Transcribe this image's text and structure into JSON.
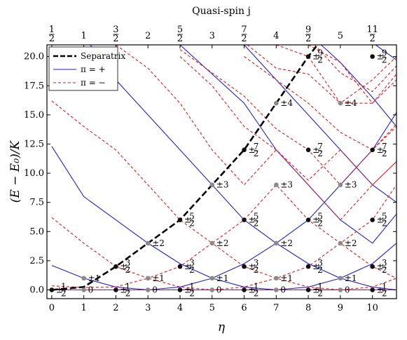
{
  "chart_data": {
    "type": "line",
    "xlabel": "η",
    "ylabel": "(E − E₀)/K",
    "top_xlabel": "Quasi-spin j",
    "xlim": [
      -0.15,
      10.75
    ],
    "ylim": [
      -0.75,
      21.0
    ],
    "x_ticks": [
      {
        "v": 0,
        "label": "0"
      },
      {
        "v": 1,
        "label": "1"
      },
      {
        "v": 2,
        "label": "2"
      },
      {
        "v": 3,
        "label": "3"
      },
      {
        "v": 4,
        "label": "4"
      },
      {
        "v": 5,
        "label": "5"
      },
      {
        "v": 6,
        "label": "6"
      },
      {
        "v": 7,
        "label": "7"
      },
      {
        "v": 8,
        "label": "8"
      },
      {
        "v": 9,
        "label": "9"
      },
      {
        "v": 10,
        "label": "10"
      }
    ],
    "y_ticks": [
      {
        "v": 0,
        "label": "0.0"
      },
      {
        "v": 2.5,
        "label": "2.5"
      },
      {
        "v": 5,
        "label": "5.0"
      },
      {
        "v": 7.5,
        "label": "7.5"
      },
      {
        "v": 10,
        "label": "10.0"
      },
      {
        "v": 12.5,
        "label": "12.5"
      },
      {
        "v": 15,
        "label": "15.0"
      },
      {
        "v": 17.5,
        "label": "17.5"
      },
      {
        "v": 20,
        "label": "20.0"
      }
    ],
    "top_ticks": [
      {
        "v": 0,
        "num": "1",
        "den": "2",
        "label": ""
      },
      {
        "v": 1,
        "num": "",
        "den": "",
        "label": "1"
      },
      {
        "v": 2,
        "num": "3",
        "den": "2",
        "label": ""
      },
      {
        "v": 3,
        "num": "",
        "den": "",
        "label": "2"
      },
      {
        "v": 4,
        "num": "5",
        "den": "2",
        "label": ""
      },
      {
        "v": 5,
        "num": "",
        "den": "",
        "label": "3"
      },
      {
        "v": 6,
        "num": "7",
        "den": "2",
        "label": ""
      },
      {
        "v": 7,
        "num": "",
        "den": "",
        "label": "4"
      },
      {
        "v": 8,
        "num": "9",
        "den": "2",
        "label": ""
      },
      {
        "v": 9,
        "num": "",
        "den": "",
        "label": "5"
      },
      {
        "v": 10,
        "num": "11",
        "den": "2",
        "label": ""
      }
    ],
    "legend": {
      "placement": "top-left",
      "entries": [
        {
          "label": "Separatrix",
          "style": "dashed-thick",
          "color": "#000000"
        },
        {
          "label": "π = +",
          "style": "solid",
          "color": "#1f1fd6"
        },
        {
          "label": "π = −",
          "style": "dashed",
          "color": "#e8161b"
        }
      ]
    },
    "series": [
      {
        "style": "separatrix",
        "color": "#000000",
        "dash": true,
        "x": [
          0,
          1,
          2,
          3,
          4,
          5,
          6,
          7,
          8,
          8.4
        ],
        "y": [
          0,
          0.25,
          2,
          4,
          6,
          9,
          12,
          16,
          20,
          21.4
        ]
      },
      {
        "style": "plus",
        "color": "#1f1fd6",
        "x": [
          0,
          1,
          2,
          3,
          4,
          5,
          6,
          7,
          8,
          9,
          10,
          10.75
        ],
        "y": [
          0,
          0,
          0,
          0,
          0,
          0,
          0,
          0,
          0,
          0,
          0,
          0
        ]
      },
      {
        "style": "plus",
        "color": "#1f1fd6",
        "x": [
          0,
          1,
          2,
          3,
          4,
          5,
          6,
          7,
          8,
          9,
          10,
          10.75
        ],
        "y": [
          2.1,
          1,
          0.25,
          0,
          0.25,
          1,
          0.25,
          0,
          0.25,
          1,
          0.25,
          0
        ]
      },
      {
        "style": "plus",
        "color": "#1f1fd6",
        "x": [
          0,
          1,
          2,
          3,
          4,
          5,
          6,
          7,
          8,
          9,
          10,
          10.75
        ],
        "y": [
          12.3,
          8,
          6,
          4,
          2.25,
          1,
          2.25,
          4,
          2.25,
          1,
          2.25,
          4
        ]
      },
      {
        "style": "plus",
        "color": "#1f1fd6",
        "x": [
          1.2,
          2,
          3,
          4,
          5,
          6,
          7,
          8,
          9,
          10,
          10.75
        ],
        "y": [
          21,
          18,
          15,
          12,
          9,
          6,
          4,
          6,
          9,
          12,
          15.2
        ]
      },
      {
        "style": "plus",
        "color": "#1f1fd6",
        "x": [
          4,
          5,
          6,
          7,
          8,
          9,
          10,
          10.75
        ],
        "y": [
          21,
          18.5,
          16,
          12,
          9,
          6,
          4,
          6.5
        ]
      },
      {
        "style": "plus",
        "color": "#1f1fd6",
        "x": [
          6,
          7,
          8,
          9,
          10,
          10.75
        ],
        "y": [
          21,
          18,
          15,
          12,
          9,
          7.5
        ]
      },
      {
        "style": "plus",
        "color": "#1f1fd6",
        "x": [
          8.4,
          9,
          10,
          10.75
        ],
        "y": [
          21,
          19.5,
          16.5,
          14
        ]
      },
      {
        "style": "plus",
        "color": "#1f1fd6",
        "x": [
          10.1,
          10.75
        ],
        "y": [
          21,
          19.7
        ]
      },
      {
        "style": "minus",
        "color": "#e8161b",
        "x": [
          0,
          1,
          2,
          3,
          4,
          5,
          6,
          7,
          8,
          9,
          10,
          10.75
        ],
        "y": [
          0,
          0,
          0,
          0,
          0,
          0,
          0,
          0,
          0,
          0,
          0,
          0
        ]
      },
      {
        "style": "minus",
        "color": "#e8161b",
        "x": [
          0,
          1,
          2,
          3,
          4,
          5,
          6,
          7,
          8,
          9,
          10,
          10.75
        ],
        "y": [
          0.35,
          0.2,
          0.25,
          1,
          0.25,
          0,
          0.25,
          1,
          0.25,
          0,
          0.25,
          1
        ]
      },
      {
        "style": "minus",
        "color": "#e8161b",
        "x": [
          0,
          1,
          2,
          3,
          4,
          5,
          6,
          7,
          8,
          9,
          10,
          10.75
        ],
        "y": [
          6.2,
          4,
          2,
          1,
          2,
          4,
          2,
          1,
          2,
          4,
          2,
          1
        ]
      },
      {
        "style": "minus",
        "color": "#e8161b",
        "x": [
          0,
          1,
          2,
          3,
          4,
          5,
          6,
          7,
          8,
          9,
          10,
          10.75
        ],
        "y": [
          16.2,
          14,
          12,
          9,
          6,
          4,
          6,
          9,
          6,
          4,
          6,
          9
        ]
      },
      {
        "style": "minus",
        "color": "#e8161b",
        "x": [
          2,
          3,
          4,
          5,
          6,
          7,
          8,
          9,
          10,
          10.75
        ],
        "y": [
          21,
          19,
          16,
          12,
          9,
          12,
          9,
          6,
          9,
          11
        ]
      },
      {
        "style": "minus",
        "color": "#e8161b",
        "x": [
          4,
          5,
          6,
          7,
          8,
          9,
          10,
          10.75
        ],
        "y": [
          20,
          17.5,
          14,
          12,
          9.4,
          12,
          9,
          11
        ]
      },
      {
        "style": "minus",
        "color": "#e8161b",
        "x": [
          4,
          5,
          6,
          7,
          8,
          9,
          10,
          10.75
        ],
        "y": [
          20.6,
          18.6,
          16.6,
          13.8,
          12,
          9,
          12,
          14.2
        ]
      },
      {
        "style": "minus",
        "color": "#e8161b",
        "x": [
          6,
          7,
          8,
          9,
          10,
          10.75
        ],
        "y": [
          20,
          18,
          16,
          13.5,
          12,
          14
        ]
      },
      {
        "style": "minus",
        "color": "#e8161b",
        "x": [
          6.1,
          7,
          8,
          9,
          10,
          10.75
        ],
        "y": [
          21,
          19,
          18.5,
          16,
          16,
          18
        ]
      },
      {
        "style": "minus",
        "color": "#e8161b",
        "x": [
          7,
          8,
          9,
          10,
          10.75
        ],
        "y": [
          21,
          20,
          16,
          18,
          20
        ]
      },
      {
        "style": "minus",
        "color": "#e8161b",
        "x": [
          8,
          9,
          10,
          10.75
        ],
        "y": [
          21,
          19.5,
          16,
          18.5
        ]
      },
      {
        "style": "minus",
        "color": "#e8161b",
        "x": [
          8.2,
          9,
          10,
          10.75
        ],
        "y": [
          21,
          18.6,
          17,
          19.2
        ]
      }
    ],
    "points": [
      {
        "x": 0,
        "y": 0,
        "c": "black",
        "label": "±1/2"
      },
      {
        "x": 1,
        "y": 0,
        "c": "gray",
        "label": "0"
      },
      {
        "x": 2,
        "y": 0,
        "c": "black",
        "label": "±1/2"
      },
      {
        "x": 3,
        "y": 0,
        "c": "gray",
        "label": "0"
      },
      {
        "x": 4,
        "y": 0,
        "c": "black",
        "label": "±1/2"
      },
      {
        "x": 5,
        "y": 0,
        "c": "gray",
        "label": "0"
      },
      {
        "x": 6,
        "y": 0,
        "c": "black",
        "label": "±1/2"
      },
      {
        "x": 7,
        "y": 0,
        "c": "gray",
        "label": "0"
      },
      {
        "x": 8,
        "y": 0,
        "c": "black",
        "label": "±1/2"
      },
      {
        "x": 9,
        "y": 0,
        "c": "gray",
        "label": "0"
      },
      {
        "x": 10,
        "y": 0,
        "c": "black",
        "label": "±1/2"
      },
      {
        "x": 1,
        "y": 1,
        "c": "gray",
        "label": "±1"
      },
      {
        "x": 3,
        "y": 1,
        "c": "gray",
        "label": "±1"
      },
      {
        "x": 5,
        "y": 1,
        "c": "gray",
        "label": "±1"
      },
      {
        "x": 7,
        "y": 1,
        "c": "gray",
        "label": "±1"
      },
      {
        "x": 9,
        "y": 1,
        "c": "gray",
        "label": "±1"
      },
      {
        "x": 2,
        "y": 2,
        "c": "black",
        "label": "±3/2"
      },
      {
        "x": 4,
        "y": 2,
        "c": "black",
        "label": "±3/2"
      },
      {
        "x": 6,
        "y": 2,
        "c": "black",
        "label": "±3/2"
      },
      {
        "x": 8,
        "y": 2,
        "c": "black",
        "label": "±3/2"
      },
      {
        "x": 10,
        "y": 2,
        "c": "black",
        "label": "±3/2"
      },
      {
        "x": 3,
        "y": 4,
        "c": "gray",
        "label": "±2"
      },
      {
        "x": 5,
        "y": 4,
        "c": "gray",
        "label": "±2"
      },
      {
        "x": 7,
        "y": 4,
        "c": "gray",
        "label": "±2"
      },
      {
        "x": 9,
        "y": 4,
        "c": "gray",
        "label": "±2"
      },
      {
        "x": 4,
        "y": 6,
        "c": "black",
        "label": "±5/2"
      },
      {
        "x": 6,
        "y": 6,
        "c": "black",
        "label": "±5/2"
      },
      {
        "x": 8,
        "y": 6,
        "c": "black",
        "label": "±5/2"
      },
      {
        "x": 10,
        "y": 6,
        "c": "black",
        "label": "±5/2"
      },
      {
        "x": 5,
        "y": 9,
        "c": "gray",
        "label": "±3"
      },
      {
        "x": 7,
        "y": 9,
        "c": "gray",
        "label": "±3"
      },
      {
        "x": 9,
        "y": 9,
        "c": "gray",
        "label": "±3"
      },
      {
        "x": 6,
        "y": 12,
        "c": "black",
        "label": "±7/2"
      },
      {
        "x": 8,
        "y": 12,
        "c": "black",
        "label": "±7/2"
      },
      {
        "x": 10,
        "y": 12,
        "c": "black",
        "label": "±7/2"
      },
      {
        "x": 7,
        "y": 16,
        "c": "gray",
        "label": "±4"
      },
      {
        "x": 9,
        "y": 16,
        "c": "gray",
        "label": "±4"
      },
      {
        "x": 8,
        "y": 20,
        "c": "black",
        "label": "±9/2"
      },
      {
        "x": 10,
        "y": 20,
        "c": "black",
        "label": "±9/2"
      }
    ],
    "colors": {
      "black_point": "#111111",
      "gray_point": "#8a8a8a"
    }
  }
}
